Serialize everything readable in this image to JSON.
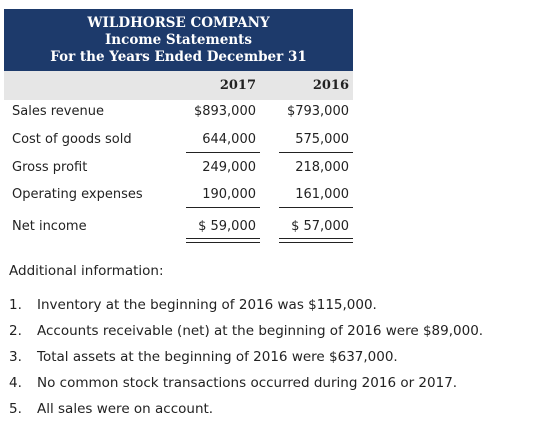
{
  "statement": {
    "company": "WILDHORSE COMPANY",
    "title": "Income Statements",
    "period": "For the Years Ended December 31",
    "years": [
      "2017",
      "2016"
    ],
    "rows": [
      {
        "label": "Sales revenue",
        "v2017": "$893,000",
        "v2016": "$793,000"
      },
      {
        "label": "Cost of goods sold",
        "v2017": "644,000",
        "v2016": "575,000"
      },
      {
        "label": "Gross profit",
        "v2017": "249,000",
        "v2016": "218,000"
      },
      {
        "label": "Operating expenses",
        "v2017": "190,000",
        "v2016": "161,000"
      },
      {
        "label": "Net income",
        "v2017": "$ 59,000",
        "v2016": "$ 57,000"
      }
    ]
  },
  "additional": {
    "heading": "Additional information:",
    "items": [
      {
        "num": "1.",
        "text": "Inventory at the beginning of 2016 was $115,000."
      },
      {
        "num": "2.",
        "text": "Accounts receivable (net) at the beginning of 2016 were $89,000."
      },
      {
        "num": "3.",
        "text": "Total assets at the beginning of 2016 were $637,000."
      },
      {
        "num": "4.",
        "text": "No common stock transactions occurred during 2016 or 2017."
      },
      {
        "num": "5.",
        "text": "All sales were on account."
      }
    ]
  },
  "colors": {
    "header_bg": "#1d3a6b",
    "year_row_bg": "#e6e6e6"
  }
}
